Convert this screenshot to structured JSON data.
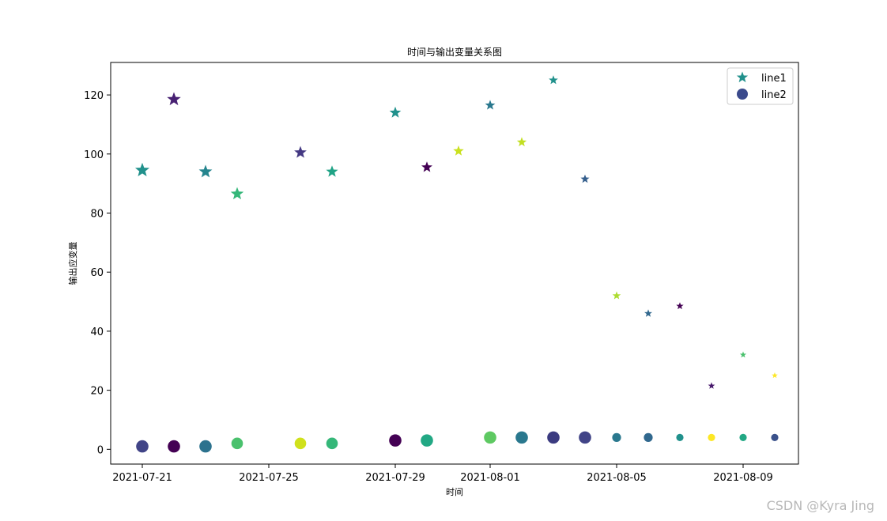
{
  "chart_data": {
    "type": "scatter",
    "title": "时间与输出变量关系图",
    "xlabel": "时间",
    "ylabel": "输出应变量",
    "x_ticks": [
      "2021-07-21",
      "2021-07-25",
      "2021-07-29",
      "2021-08-01",
      "2021-08-05",
      "2021-08-09"
    ],
    "y_ticks": [
      0,
      20,
      40,
      60,
      80,
      100,
      120
    ],
    "ylim": [
      -5,
      131
    ],
    "xlim": [
      "2021-07-20",
      "2021-08-11"
    ],
    "legend_position": "top-right",
    "series": [
      {
        "name": "line1",
        "marker": "star",
        "legend_color": "#21918c",
        "points": [
          {
            "x": "2021-07-21",
            "y": 94.5,
            "color": "#21918c"
          },
          {
            "x": "2021-07-22",
            "y": 118.5,
            "color": "#482173"
          },
          {
            "x": "2021-07-23",
            "y": 94,
            "color": "#25858e"
          },
          {
            "x": "2021-07-24",
            "y": 86.5,
            "color": "#35b779"
          },
          {
            "x": "2021-07-26",
            "y": 100.5,
            "color": "#443983"
          },
          {
            "x": "2021-07-27",
            "y": 94,
            "color": "#20a386"
          },
          {
            "x": "2021-07-29",
            "y": 114,
            "color": "#21918c"
          },
          {
            "x": "2021-07-30",
            "y": 95.5,
            "color": "#440154"
          },
          {
            "x": "2021-07-31",
            "y": 101,
            "color": "#cae11f"
          },
          {
            "x": "2021-08-01",
            "y": 116.5,
            "color": "#2a788e"
          },
          {
            "x": "2021-08-02",
            "y": 104,
            "color": "#c2df23"
          },
          {
            "x": "2021-08-03",
            "y": 125,
            "color": "#21918c"
          },
          {
            "x": "2021-08-04",
            "y": 91.5,
            "color": "#355f8d"
          },
          {
            "x": "2021-08-05",
            "y": 52,
            "color": "#addc30"
          },
          {
            "x": "2021-08-06",
            "y": 46,
            "color": "#31688e"
          },
          {
            "x": "2021-08-07",
            "y": 48.5,
            "color": "#440154"
          },
          {
            "x": "2021-08-08",
            "y": 21.5,
            "color": "#481a6c"
          },
          {
            "x": "2021-08-09",
            "y": 32,
            "color": "#4ac16d"
          },
          {
            "x": "2021-08-10",
            "y": 25,
            "color": "#fde725"
          }
        ]
      },
      {
        "name": "line2",
        "marker": "circle",
        "legend_color": "#3b4a8c",
        "points": [
          {
            "x": "2021-07-21",
            "y": 1,
            "color": "#414487"
          },
          {
            "x": "2021-07-22",
            "y": 1,
            "color": "#440154"
          },
          {
            "x": "2021-07-23",
            "y": 1,
            "color": "#2c728e"
          },
          {
            "x": "2021-07-24",
            "y": 2,
            "color": "#4ac16d"
          },
          {
            "x": "2021-07-26",
            "y": 2,
            "color": "#d0e11c"
          },
          {
            "x": "2021-07-27",
            "y": 2,
            "color": "#35b779"
          },
          {
            "x": "2021-07-29",
            "y": 3,
            "color": "#440154"
          },
          {
            "x": "2021-07-30",
            "y": 3,
            "color": "#22a884"
          },
          {
            "x": "2021-08-01",
            "y": 4,
            "color": "#5ec962"
          },
          {
            "x": "2021-08-02",
            "y": 4,
            "color": "#2a788e"
          },
          {
            "x": "2021-08-03",
            "y": 4,
            "color": "#3b3b80"
          },
          {
            "x": "2021-08-04",
            "y": 4,
            "color": "#414487"
          },
          {
            "x": "2021-08-05",
            "y": 4,
            "color": "#2a788e"
          },
          {
            "x": "2021-08-06",
            "y": 4,
            "color": "#31688e"
          },
          {
            "x": "2021-08-07",
            "y": 4,
            "color": "#21918c"
          },
          {
            "x": "2021-08-08",
            "y": 4,
            "color": "#fde725"
          },
          {
            "x": "2021-08-09",
            "y": 4,
            "color": "#22a884"
          },
          {
            "x": "2021-08-10",
            "y": 4,
            "color": "#3b528b"
          }
        ]
      }
    ]
  },
  "watermark": "CSDN @Kyra Jing"
}
